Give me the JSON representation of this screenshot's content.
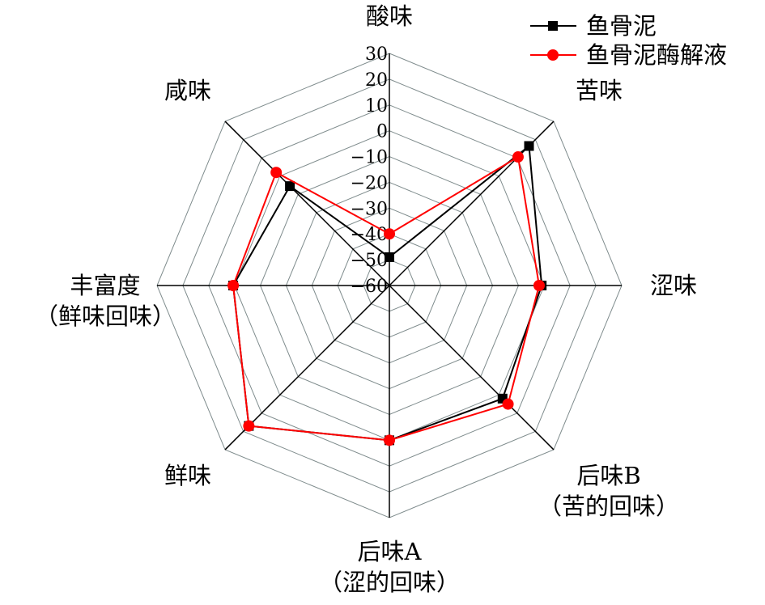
{
  "chart_data": {
    "type": "radar",
    "axes": [
      "酸味",
      "苦味",
      "涩味",
      "后味B\n（苦的回味）",
      "后味A\n（涩的回味）",
      "鲜味",
      "丰富度\n（鲜味回味）",
      "咸味"
    ],
    "rlim": [
      -60,
      30
    ],
    "ticks": [
      30,
      20,
      10,
      0,
      -10,
      -20,
      -30,
      -40,
      -50,
      -60
    ],
    "grid": true,
    "legend_position": "top-right",
    "series": [
      {
        "name": "鱼骨泥",
        "color": "#000000",
        "marker": "square",
        "values": [
          -49,
          16.5,
          -1,
          2,
          0,
          17,
          0.5,
          -5.5
        ]
      },
      {
        "name": "鱼骨泥酶解液",
        "color": "#ff0000",
        "marker": "circle",
        "values": [
          -40,
          10.5,
          -2,
          5,
          0,
          17,
          0.5,
          2
        ]
      }
    ]
  }
}
